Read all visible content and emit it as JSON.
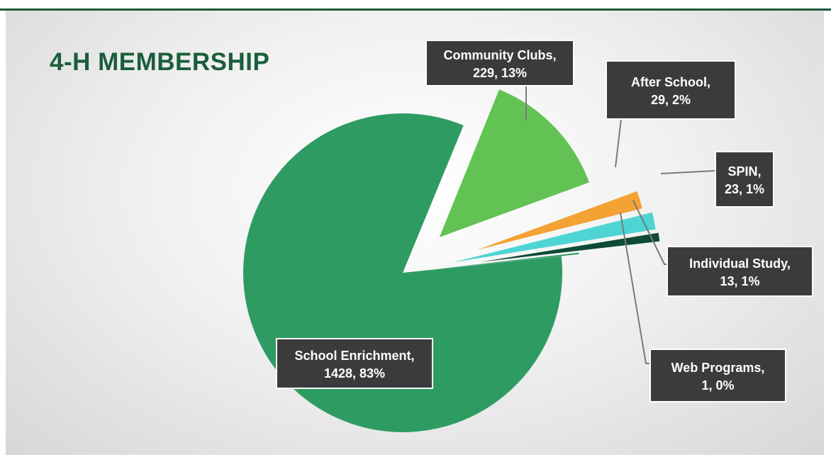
{
  "title": "4-H MEMBERSHIP",
  "chart_data": {
    "type": "pie",
    "title": "4-H MEMBERSHIP",
    "slices": [
      {
        "name": "Community Clubs",
        "value": 229,
        "percent": "13%",
        "color": "#63c254"
      },
      {
        "name": "After School",
        "value": 29,
        "percent": "2%",
        "color": "#f5a234"
      },
      {
        "name": "SPIN",
        "value": 23,
        "percent": "1%",
        "color": "#4ed4d4"
      },
      {
        "name": "Individual Study",
        "value": 13,
        "percent": "1%",
        "color": "#0e4a36"
      },
      {
        "name": "Web Programs",
        "value": 1,
        "percent": "0%",
        "color": "#2d9a62"
      },
      {
        "name": "School Enrichment",
        "value": 1428,
        "percent": "83%",
        "color": "#2e9b63"
      }
    ],
    "labels": [
      {
        "line1": "Community Clubs,",
        "line2": "229, 13%"
      },
      {
        "line1": "After School,",
        "line2": "29, 2%"
      },
      {
        "line1": "SPIN,",
        "line2": "23, 1%"
      },
      {
        "line1": "Individual Study,",
        "line2": "13, 1%"
      },
      {
        "line1": "Web Programs,",
        "line2": "1, 0%"
      },
      {
        "line1": "School Enrichment,",
        "line2": "1428, 83%"
      }
    ]
  },
  "colors": {
    "title": "#1b5e3b",
    "label_box": "#3b3b3b",
    "background_center": "#ffffff",
    "background_edge": "#d7d7d7"
  }
}
